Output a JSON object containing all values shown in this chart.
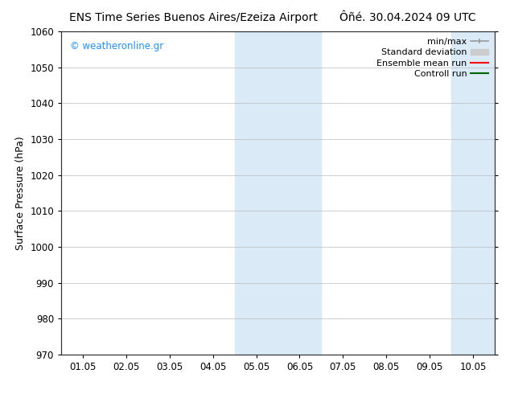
{
  "title_left": "ENS Time Series Buenos Aires/Ezeiza Airport",
  "title_right": "Ôñé. 30.04.2024 09 UTC",
  "ylabel": "Surface Pressure (hPa)",
  "ylim": [
    970,
    1060
  ],
  "yticks": [
    970,
    980,
    990,
    1000,
    1010,
    1020,
    1030,
    1040,
    1050,
    1060
  ],
  "xtick_labels": [
    "01.05",
    "02.05",
    "03.05",
    "04.05",
    "05.05",
    "06.05",
    "07.05",
    "08.05",
    "09.05",
    "10.05"
  ],
  "x_positions": [
    0,
    1,
    2,
    3,
    4,
    5,
    6,
    7,
    8,
    9
  ],
  "xlim": [
    -0.5,
    9.5
  ],
  "background_color": "#ffffff",
  "plot_bg_color": "#ffffff",
  "shaded_regions": [
    {
      "x_start": 3.5,
      "x_end": 5.5,
      "color": "#daeaf7"
    },
    {
      "x_start": 8.5,
      "x_end": 9.5,
      "color": "#daeaf7"
    }
  ],
  "watermark_text": "© weatheronline.gr",
  "watermark_color": "#1e90ff",
  "legend_items": [
    {
      "label": "min/max",
      "color": "#999999",
      "lw": 1.2,
      "ls": "-",
      "type": "errorbar"
    },
    {
      "label": "Standard deviation",
      "color": "#cccccc",
      "lw": 8,
      "ls": "-",
      "type": "patch"
    },
    {
      "label": "Ensemble mean run",
      "color": "#ff0000",
      "lw": 1.5,
      "ls": "-",
      "type": "line"
    },
    {
      "label": "Controll run",
      "color": "#006400",
      "lw": 1.5,
      "ls": "-",
      "type": "line"
    }
  ],
  "title_fontsize": 10,
  "axis_label_fontsize": 9,
  "tick_fontsize": 8.5,
  "legend_fontsize": 8,
  "grid_color": "#bbbbbb",
  "grid_lw": 0.5
}
